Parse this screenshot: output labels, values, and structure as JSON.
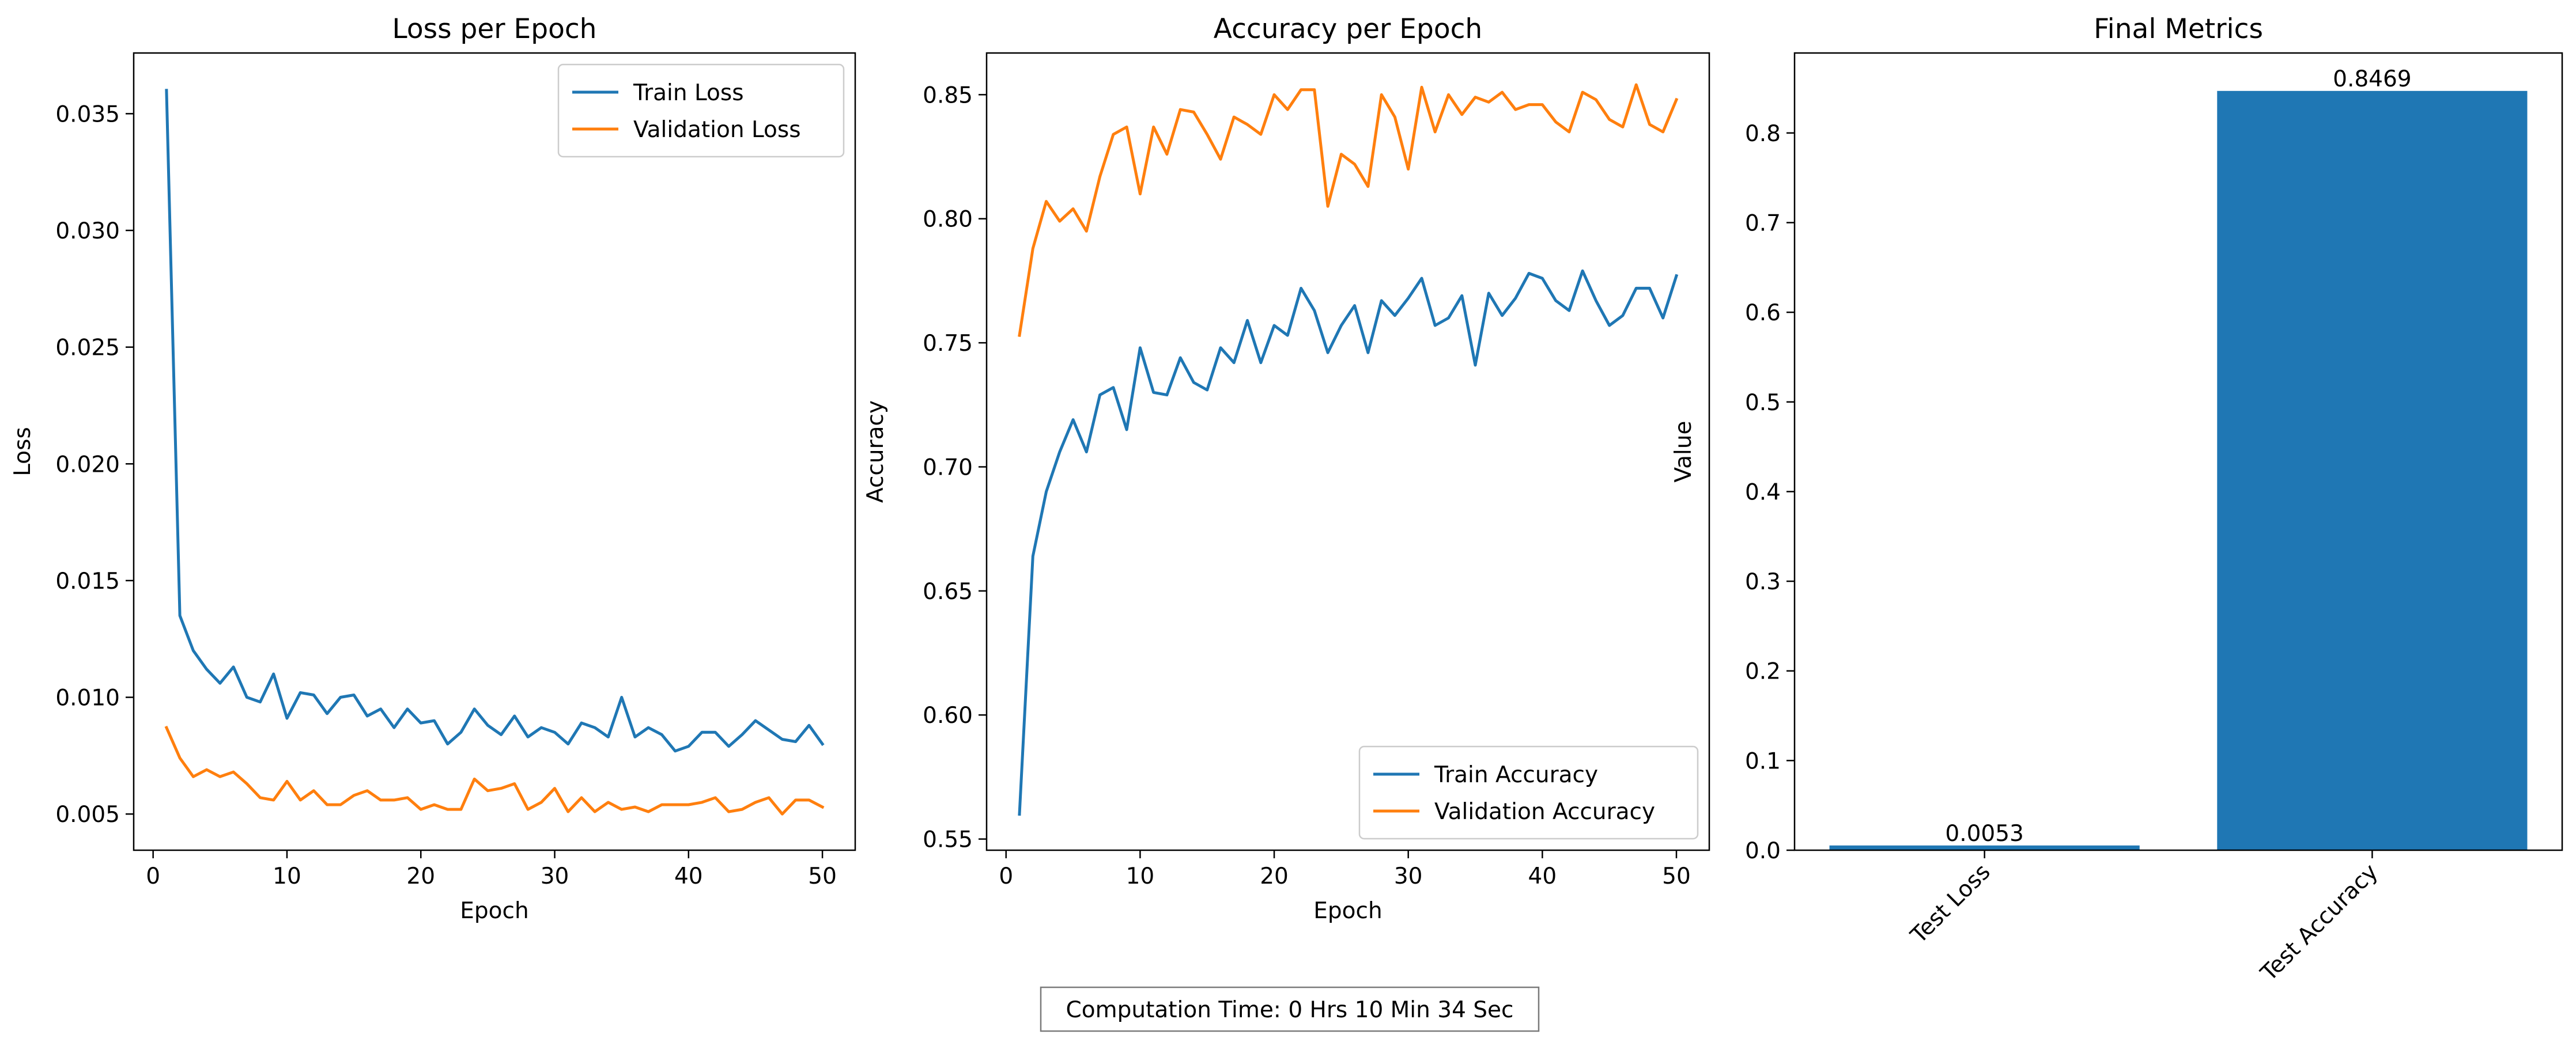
{
  "chart_data": [
    {
      "type": "line",
      "title": "Loss per Epoch",
      "xlabel": "Epoch",
      "ylabel": "Loss",
      "xlim": [
        -1.45,
        52.45
      ],
      "ylim": [
        0.00345,
        0.0376
      ],
      "xticks": [
        0,
        10,
        20,
        30,
        40,
        50
      ],
      "yticks": [
        0.005,
        0.01,
        0.015,
        0.02,
        0.025,
        0.03,
        0.035
      ],
      "ytick_labels": [
        "0.005",
        "0.010",
        "0.015",
        "0.020",
        "0.025",
        "0.030",
        "0.035"
      ],
      "legend_position": "upper right",
      "grid": false,
      "x": [
        1,
        2,
        3,
        4,
        5,
        6,
        7,
        8,
        9,
        10,
        11,
        12,
        13,
        14,
        15,
        16,
        17,
        18,
        19,
        20,
        21,
        22,
        23,
        24,
        25,
        26,
        27,
        28,
        29,
        30,
        31,
        32,
        33,
        34,
        35,
        36,
        37,
        38,
        39,
        40,
        41,
        42,
        43,
        44,
        45,
        46,
        47,
        48,
        49,
        50
      ],
      "series": [
        {
          "name": "Train Loss",
          "color": "#1f77b4",
          "values": [
            0.036,
            0.0135,
            0.012,
            0.0112,
            0.0106,
            0.0113,
            0.01,
            0.0098,
            0.011,
            0.0091,
            0.0102,
            0.0101,
            0.0093,
            0.01,
            0.0101,
            0.0092,
            0.0095,
            0.0087,
            0.0095,
            0.0089,
            0.009,
            0.008,
            0.0085,
            0.0095,
            0.0088,
            0.0084,
            0.0092,
            0.0083,
            0.0087,
            0.0085,
            0.008,
            0.0089,
            0.0087,
            0.0083,
            0.01,
            0.0083,
            0.0087,
            0.0084,
            0.0077,
            0.0079,
            0.0085,
            0.0085,
            0.0079,
            0.0084,
            0.009,
            0.0086,
            0.0082,
            0.0081,
            0.0088,
            0.008
          ]
        },
        {
          "name": "Validation Loss",
          "color": "#ff7f0e",
          "values": [
            0.0087,
            0.0074,
            0.0066,
            0.0069,
            0.0066,
            0.0068,
            0.0063,
            0.0057,
            0.0056,
            0.0064,
            0.0056,
            0.006,
            0.0054,
            0.0054,
            0.0058,
            0.006,
            0.0056,
            0.0056,
            0.0057,
            0.0052,
            0.0054,
            0.0052,
            0.0052,
            0.0065,
            0.006,
            0.0061,
            0.0063,
            0.0052,
            0.0055,
            0.0061,
            0.0051,
            0.0057,
            0.0051,
            0.0055,
            0.0052,
            0.0053,
            0.0051,
            0.0054,
            0.0054,
            0.0054,
            0.0055,
            0.0057,
            0.0051,
            0.0052,
            0.0055,
            0.0057,
            0.005,
            0.0056,
            0.0056,
            0.0053
          ]
        }
      ]
    },
    {
      "type": "line",
      "title": "Accuracy per Epoch",
      "xlabel": "Epoch",
      "ylabel": "Accuracy",
      "xlim": [
        -1.45,
        52.45
      ],
      "ylim": [
        0.5455,
        0.8668
      ],
      "xticks": [
        0,
        10,
        20,
        30,
        40,
        50
      ],
      "yticks": [
        0.55,
        0.6,
        0.65,
        0.7,
        0.75,
        0.8,
        0.85
      ],
      "ytick_labels": [
        "0.55",
        "0.60",
        "0.65",
        "0.70",
        "0.75",
        "0.80",
        "0.85"
      ],
      "legend_position": "lower right",
      "grid": false,
      "x": [
        1,
        2,
        3,
        4,
        5,
        6,
        7,
        8,
        9,
        10,
        11,
        12,
        13,
        14,
        15,
        16,
        17,
        18,
        19,
        20,
        21,
        22,
        23,
        24,
        25,
        26,
        27,
        28,
        29,
        30,
        31,
        32,
        33,
        34,
        35,
        36,
        37,
        38,
        39,
        40,
        41,
        42,
        43,
        44,
        45,
        46,
        47,
        48,
        49,
        50
      ],
      "series": [
        {
          "name": "Train Accuracy",
          "color": "#1f77b4",
          "values": [
            0.56,
            0.664,
            0.69,
            0.706,
            0.719,
            0.706,
            0.729,
            0.732,
            0.715,
            0.748,
            0.73,
            0.729,
            0.744,
            0.734,
            0.731,
            0.748,
            0.742,
            0.759,
            0.742,
            0.757,
            0.753,
            0.772,
            0.763,
            0.746,
            0.757,
            0.765,
            0.746,
            0.767,
            0.761,
            0.768,
            0.776,
            0.757,
            0.76,
            0.769,
            0.741,
            0.77,
            0.761,
            0.768,
            0.778,
            0.776,
            0.767,
            0.763,
            0.779,
            0.767,
            0.757,
            0.761,
            0.772,
            0.772,
            0.76,
            0.777
          ]
        },
        {
          "name": "Validation Accuracy",
          "color": "#ff7f0e",
          "values": [
            0.753,
            0.788,
            0.807,
            0.799,
            0.804,
            0.795,
            0.817,
            0.834,
            0.837,
            0.81,
            0.837,
            0.826,
            0.844,
            0.843,
            0.834,
            0.824,
            0.841,
            0.838,
            0.834,
            0.85,
            0.844,
            0.852,
            0.852,
            0.805,
            0.826,
            0.822,
            0.813,
            0.85,
            0.841,
            0.82,
            0.853,
            0.835,
            0.85,
            0.842,
            0.849,
            0.847,
            0.851,
            0.844,
            0.846,
            0.846,
            0.839,
            0.835,
            0.851,
            0.848,
            0.84,
            0.837,
            0.854,
            0.838,
            0.835,
            0.848
          ]
        }
      ]
    },
    {
      "type": "bar",
      "title": "Final Metrics",
      "xlabel": "",
      "ylabel": "Value",
      "ylim": [
        0,
        0.8892
      ],
      "yticks": [
        0.0,
        0.1,
        0.2,
        0.3,
        0.4,
        0.5,
        0.6,
        0.7,
        0.8
      ],
      "ytick_labels": [
        "0.0",
        "0.1",
        "0.2",
        "0.3",
        "0.4",
        "0.5",
        "0.6",
        "0.7",
        "0.8"
      ],
      "categories": [
        "Test Loss",
        "Test Accuracy"
      ],
      "values": [
        0.0053,
        0.8469
      ],
      "value_labels": [
        "0.0053",
        "0.8469"
      ],
      "bar_color": "#1f77b4",
      "tick_label_rotation_deg": 45,
      "grid": false
    }
  ],
  "footer": {
    "text": "Computation Time: 0 Hrs 10 Min 34 Sec"
  }
}
